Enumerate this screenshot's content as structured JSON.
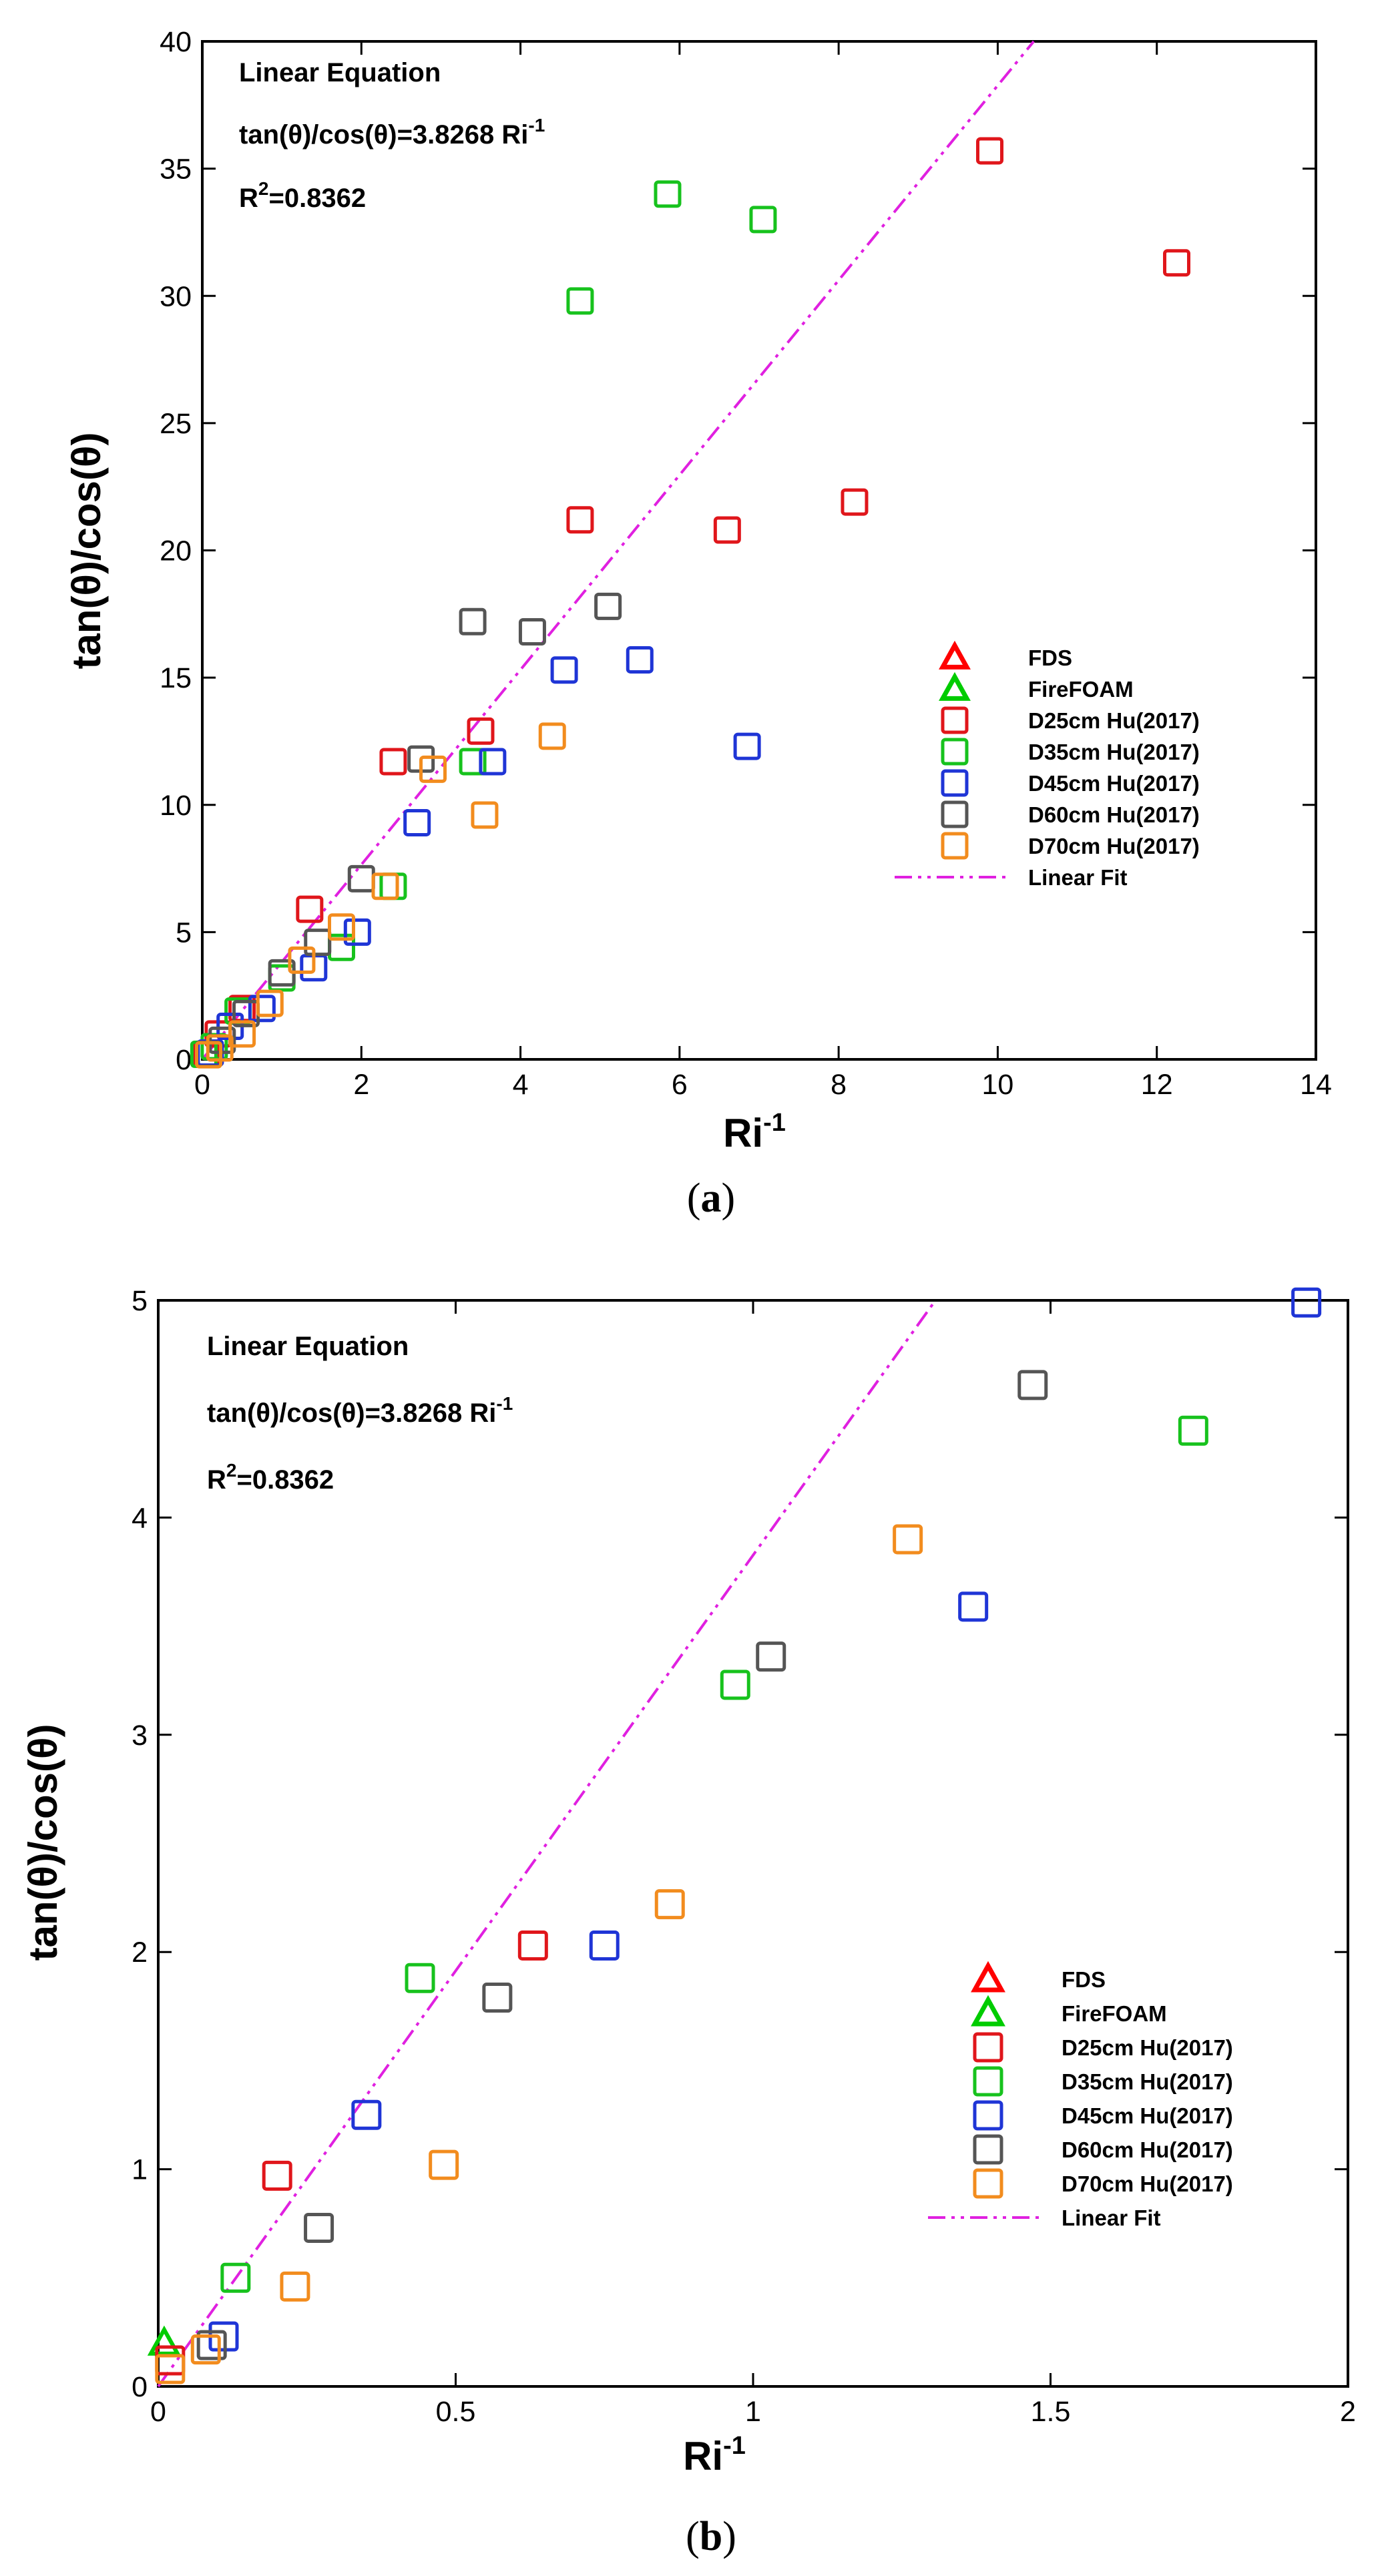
{
  "chart_data": [
    {
      "type": "scatter",
      "panel_label": "a",
      "xlabel": "Ri",
      "xlabel_sup": "-1",
      "ylabel": "tan(θ)/cos(θ)",
      "xlim": [
        0,
        14
      ],
      "ylim": [
        0,
        40
      ],
      "xticks": [
        0,
        2,
        4,
        6,
        8,
        10,
        12,
        14
      ],
      "yticks": [
        0,
        5,
        10,
        15,
        20,
        25,
        30,
        35,
        40
      ],
      "annotations": {
        "title": "Linear Equation",
        "equation": "tan(θ)/cos(θ)=3.8268 Ri",
        "equation_sup": "-1",
        "r2_prefix": "R",
        "r2_sup": "2",
        "r2_value": "=0.8362"
      },
      "legend_position": "right-middle",
      "series": [
        {
          "name": "FDS",
          "marker": "triangle",
          "color": "#ff0000",
          "points": []
        },
        {
          "name": "FireFOAM",
          "marker": "triangle",
          "color": "#00cc00",
          "points": []
        },
        {
          "name": "D25cm Hu(2017)",
          "marker": "square",
          "color": "#e0161b",
          "points": [
            [
              9.9,
              35.7
            ],
            [
              12.25,
              31.3
            ],
            [
              8.2,
              21.9
            ],
            [
              6.6,
              20.8
            ],
            [
              4.75,
              21.2
            ],
            [
              3.5,
              12.9
            ],
            [
              2.4,
              11.7
            ],
            [
              1.35,
              5.9
            ],
            [
              0.5,
              2.0
            ],
            [
              0.2,
              1.0
            ],
            [
              0.05,
              0.2
            ]
          ]
        },
        {
          "name": "D35cm Hu(2017)",
          "marker": "square",
          "color": "#17c21d",
          "points": [
            [
              5.85,
              34.0
            ],
            [
              7.05,
              33.0
            ],
            [
              4.75,
              29.8
            ],
            [
              3.4,
              11.7
            ],
            [
              2.4,
              6.8
            ],
            [
              1.75,
              4.4
            ],
            [
              1.0,
              3.2
            ],
            [
              0.45,
              1.9
            ],
            [
              0.15,
              0.5
            ],
            [
              0.02,
              0.2
            ]
          ]
        },
        {
          "name": "D45cm Hu(2017)",
          "marker": "square",
          "color": "#1f35d6",
          "points": [
            [
              5.5,
              15.7
            ],
            [
              4.55,
              15.3
            ],
            [
              6.85,
              12.3
            ],
            [
              3.65,
              11.7
            ],
            [
              2.7,
              9.3
            ],
            [
              1.95,
              5.0
            ],
            [
              1.4,
              3.6
            ],
            [
              0.75,
              2.0
            ],
            [
              0.35,
              1.3
            ],
            [
              0.1,
              0.25
            ]
          ]
        },
        {
          "name": "D60cm Hu(2017)",
          "marker": "square",
          "color": "#555555",
          "points": [
            [
              5.1,
              17.8
            ],
            [
              3.4,
              17.2
            ],
            [
              4.15,
              16.8
            ],
            [
              2.75,
              11.8
            ],
            [
              2.0,
              7.1
            ],
            [
              1.45,
              4.6
            ],
            [
              1.0,
              3.4
            ],
            [
              0.55,
              1.8
            ],
            [
              0.25,
              0.75
            ],
            [
              0.08,
              0.2
            ]
          ]
        },
        {
          "name": "D70cm Hu(2017)",
          "marker": "square",
          "color": "#f28c1e",
          "points": [
            [
              4.4,
              12.7
            ],
            [
              2.9,
              11.4
            ],
            [
              3.55,
              9.6
            ],
            [
              2.3,
              6.8
            ],
            [
              1.75,
              5.2
            ],
            [
              1.25,
              3.9
            ],
            [
              0.85,
              2.2
            ],
            [
              0.5,
              1.0
            ],
            [
              0.22,
              0.45
            ],
            [
              0.08,
              0.18
            ]
          ]
        },
        {
          "name": "Linear Fit",
          "marker": "line",
          "color": "#e020e0",
          "slope": 3.8268
        }
      ]
    },
    {
      "type": "scatter",
      "panel_label": "b",
      "xlabel": "Ri",
      "xlabel_sup": "-1",
      "ylabel": "tan(θ)/cos(θ)",
      "xlim": [
        0,
        2
      ],
      "ylim": [
        0,
        5
      ],
      "xticks": [
        0,
        0.5,
        1,
        1.5,
        2
      ],
      "yticks": [
        0,
        1,
        2,
        3,
        4,
        5
      ],
      "annotations": {
        "title": "Linear Equation",
        "equation": "tan(θ)/cos(θ)=3.8268 Ri",
        "equation_sup": "-1",
        "r2_prefix": "R",
        "r2_sup": "2",
        "r2_value": "=0.8362"
      },
      "legend_position": "right-middle",
      "series": [
        {
          "name": "FDS",
          "marker": "triangle",
          "color": "#ff0000",
          "points": []
        },
        {
          "name": "FireFOAM",
          "marker": "triangle",
          "color": "#00cc00",
          "points": [
            [
              0.01,
              0.2
            ]
          ]
        },
        {
          "name": "D25cm Hu(2017)",
          "marker": "square",
          "color": "#e0161b",
          "points": [
            [
              0.2,
              0.97
            ],
            [
              0.63,
              2.03
            ],
            [
              0.02,
              0.12
            ]
          ]
        },
        {
          "name": "D35cm Hu(2017)",
          "marker": "square",
          "color": "#17c21d",
          "points": [
            [
              1.74,
              4.4
            ],
            [
              0.97,
              3.23
            ],
            [
              0.44,
              1.88
            ],
            [
              0.13,
              0.5
            ]
          ]
        },
        {
          "name": "D45cm Hu(2017)",
          "marker": "square",
          "color": "#1f35d6",
          "points": [
            [
              1.93,
              4.99
            ],
            [
              1.37,
              3.59
            ],
            [
              0.75,
              2.03
            ],
            [
              0.35,
              1.25
            ],
            [
              0.11,
              0.23
            ]
          ]
        },
        {
          "name": "D60cm Hu(2017)",
          "marker": "square",
          "color": "#555555",
          "points": [
            [
              1.47,
              4.61
            ],
            [
              1.03,
              3.36
            ],
            [
              0.57,
              1.79
            ],
            [
              0.27,
              0.73
            ],
            [
              0.09,
              0.19
            ]
          ]
        },
        {
          "name": "D70cm Hu(2017)",
          "marker": "square",
          "color": "#f28c1e",
          "points": [
            [
              1.26,
              3.9
            ],
            [
              0.86,
              2.22
            ],
            [
              0.48,
              1.02
            ],
            [
              0.23,
              0.46
            ],
            [
              0.08,
              0.17
            ],
            [
              0.02,
              0.08
            ]
          ]
        },
        {
          "name": "Linear Fit",
          "marker": "line",
          "color": "#e020e0",
          "slope": 3.8268
        }
      ]
    }
  ],
  "captions": [
    "a",
    "b"
  ]
}
